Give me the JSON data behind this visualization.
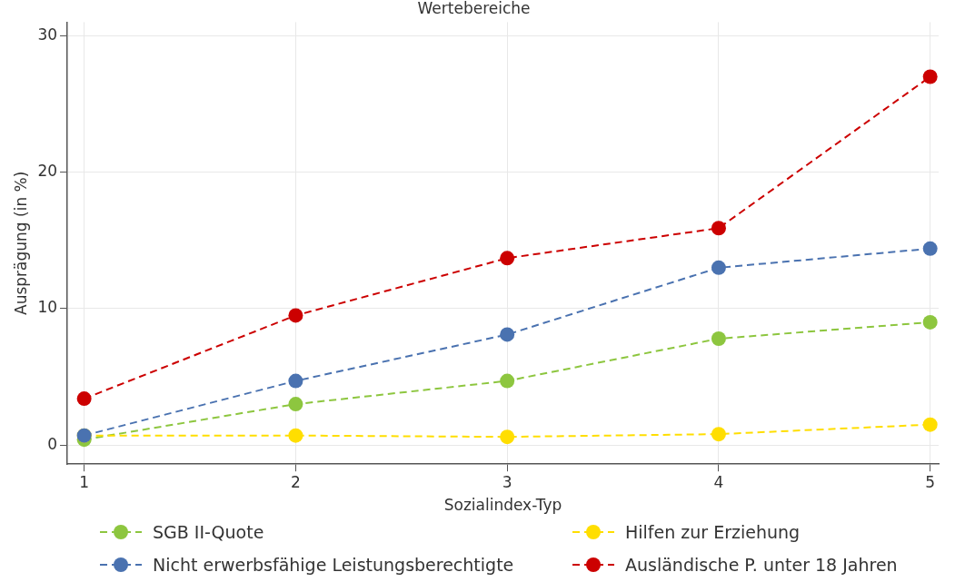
{
  "chart_data": {
    "type": "line",
    "title": "Wertebereiche",
    "xlabel": "Sozialindex-Typ",
    "ylabel": "Ausprägung (in %)",
    "x": [
      1,
      2,
      3,
      4,
      5
    ],
    "xlim": [
      0.92,
      5.04
    ],
    "xticks": [
      1,
      2,
      3,
      4,
      5
    ],
    "ylim": [
      -1.4,
      31
    ],
    "yticks": [
      0,
      10,
      20,
      30
    ],
    "grid": true,
    "legend": "bottom",
    "marker": "circle",
    "line_style": "dashed",
    "series": [
      {
        "name": "SGB II-Quote",
        "color": "#8dc63f",
        "values": [
          0.4,
          3.0,
          4.7,
          7.8,
          9.0
        ]
      },
      {
        "name": "Hilfen zur Erziehung",
        "color": "#ffde00",
        "values": [
          0.7,
          0.7,
          0.6,
          0.8,
          1.5
        ]
      },
      {
        "name": "Nicht erwerbsfähige Leistungsberechtigte",
        "color": "#4a72b0",
        "values": [
          0.7,
          4.7,
          8.1,
          13.0,
          14.4
        ]
      },
      {
        "name": "Ausländische P. unter 18 Jahren",
        "color": "#cc0000",
        "values": [
          3.4,
          9.5,
          13.7,
          15.9,
          27.0
        ]
      }
    ]
  }
}
